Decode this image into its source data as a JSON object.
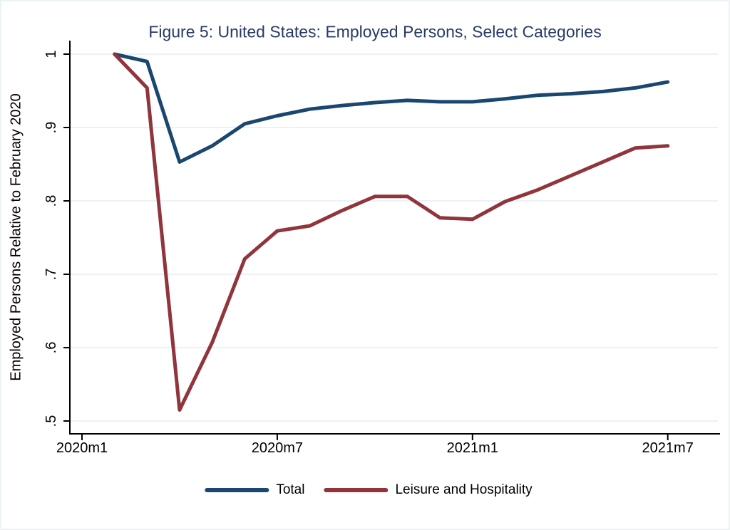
{
  "figure": {
    "title": "Figure 5: United States: Employed Persons, Select Categories",
    "y_axis_title": "Employed Persons Relative to February 2020"
  },
  "colors": {
    "total_line": "#1a476f",
    "leisure_line": "#90353b",
    "title_text": "#283a64",
    "gridline": "#e4eef2",
    "axis": "#000000",
    "tick_text": "#000000",
    "canvas_border": "#ecf3f4"
  },
  "legend": {
    "items": [
      {
        "label": "Total",
        "color_key": "total_line"
      },
      {
        "label": "Leisure and Hospitality",
        "color_key": "leisure_line"
      }
    ]
  },
  "chart_data": {
    "type": "line",
    "title": "Figure 5: United States: Employed Persons, Select Categories",
    "xlabel": "",
    "ylabel": "Employed Persons Relative to February 2020",
    "x_unit": "month",
    "x": [
      "2020m2",
      "2020m3",
      "2020m4",
      "2020m5",
      "2020m6",
      "2020m7",
      "2020m8",
      "2020m9",
      "2020m10",
      "2020m11",
      "2020m12",
      "2021m1",
      "2021m2",
      "2021m3",
      "2021m4",
      "2021m5",
      "2021m6",
      "2021m7"
    ],
    "x_index": [
      1,
      2,
      3,
      4,
      5,
      6,
      7,
      8,
      9,
      10,
      11,
      12,
      13,
      14,
      15,
      16,
      17,
      18
    ],
    "series": [
      {
        "name": "Total",
        "color_key": "total_line",
        "values": [
          1.0,
          0.99,
          0.853,
          0.875,
          0.905,
          0.916,
          0.925,
          0.93,
          0.934,
          0.937,
          0.935,
          0.935,
          0.939,
          0.944,
          0.946,
          0.949,
          0.954,
          0.962
        ]
      },
      {
        "name": "Leisure and Hospitality",
        "color_key": "leisure_line",
        "values": [
          1.0,
          0.954,
          0.515,
          0.607,
          0.721,
          0.759,
          0.766,
          0.787,
          0.806,
          0.806,
          0.777,
          0.775,
          0.799,
          0.815,
          0.834,
          0.853,
          0.872,
          0.875
        ]
      }
    ],
    "x_ticks": [
      {
        "index": 0,
        "label": "2020m1"
      },
      {
        "index": 6,
        "label": "2020m7"
      },
      {
        "index": 12,
        "label": "2021m1"
      },
      {
        "index": 18,
        "label": "2021m7"
      }
    ],
    "y_ticks": [
      {
        "value": 0.5,
        "label": ".5"
      },
      {
        "value": 0.6,
        "label": ".6"
      },
      {
        "value": 0.7,
        "label": ".7"
      },
      {
        "value": 0.8,
        "label": ".8"
      },
      {
        "value": 0.9,
        "label": ".9"
      },
      {
        "value": 1.0,
        "label": "1"
      }
    ],
    "ylim": [
      0.5,
      1.0
    ],
    "grid": "horizontal",
    "legend_position": "bottom"
  }
}
